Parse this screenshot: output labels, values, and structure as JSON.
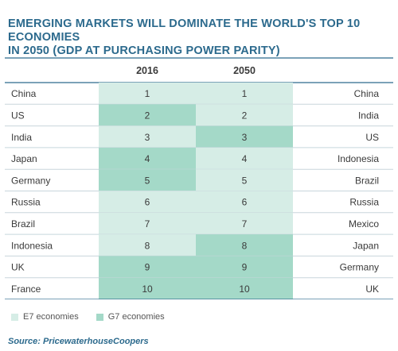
{
  "title": "EMERGING MARKETS WILL DOMINATE THE WORLD'S TOP 10 ECONOMIES\nIN 2050 (GDP AT PURCHASING POWER PARITY)",
  "colors": {
    "e7": "#d6ede6",
    "g7": "#a4d9c8",
    "title": "#2c6a8d",
    "rule_dark": "#2c6a8d",
    "rule_light": "#c8d6dc"
  },
  "chart_data": {
    "type": "table",
    "columns": [
      "2016",
      "2050"
    ],
    "rows": [
      {
        "left": "China",
        "rank": 1,
        "left_group": "E7",
        "right": "China",
        "right_group": "E7"
      },
      {
        "left": "US",
        "rank": 2,
        "left_group": "G7",
        "right": "India",
        "right_group": "E7"
      },
      {
        "left": "India",
        "rank": 3,
        "left_group": "E7",
        "right": "US",
        "right_group": "G7"
      },
      {
        "left": "Japan",
        "rank": 4,
        "left_group": "G7",
        "right": "Indonesia",
        "right_group": "E7"
      },
      {
        "left": "Germany",
        "rank": 5,
        "left_group": "G7",
        "right": "Brazil",
        "right_group": "E7"
      },
      {
        "left": "Russia",
        "rank": 6,
        "left_group": "E7",
        "right": "Russia",
        "right_group": "E7"
      },
      {
        "left": "Brazil",
        "rank": 7,
        "left_group": "E7",
        "right": "Mexico",
        "right_group": "E7"
      },
      {
        "left": "Indonesia",
        "rank": 8,
        "left_group": "E7",
        "right": "Japan",
        "right_group": "G7"
      },
      {
        "left": "UK",
        "rank": 9,
        "left_group": "G7",
        "right": "Germany",
        "right_group": "G7"
      },
      {
        "left": "France",
        "rank": 10,
        "left_group": "G7",
        "right": "UK",
        "right_group": "G7"
      }
    ]
  },
  "legend": {
    "e7_label": "E7 economies",
    "g7_label": "G7 economies"
  },
  "source": "Source: PricewaterhouseCoopers"
}
